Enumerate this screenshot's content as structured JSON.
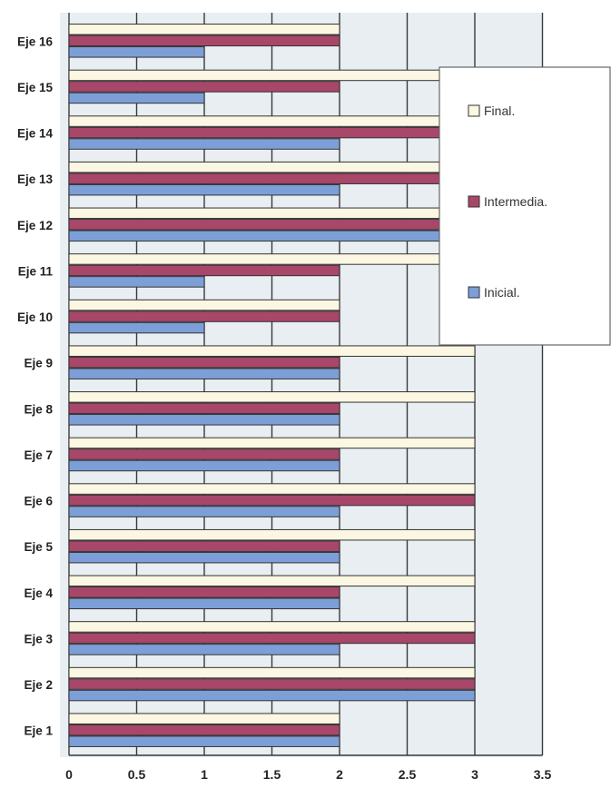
{
  "chart_data": {
    "type": "bar",
    "orientation": "horizontal",
    "categories": [
      "Eje 1",
      "Eje 2",
      "Eje 3",
      "Eje 4",
      "Eje 5",
      "Eje 6",
      "Eje 7",
      "Eje 8",
      "Eje 9",
      "Eje 10",
      "Eje 11",
      "Eje 12",
      "Eje 13",
      "Eje 14",
      "Eje 15",
      "Eje 16"
    ],
    "series": [
      {
        "name": "Inicial.",
        "color": "#7d9fd8",
        "values": [
          2,
          3,
          2,
          2,
          2,
          2,
          2,
          2,
          2,
          1,
          1,
          3,
          2,
          2,
          1,
          1
        ]
      },
      {
        "name": "Intermedia.",
        "color": "#a8476a",
        "values": [
          2,
          3,
          3,
          2,
          2,
          3,
          2,
          2,
          2,
          2,
          2,
          3,
          3,
          3,
          2,
          2
        ]
      },
      {
        "name": "Final.",
        "color": "#fbf7e2",
        "values": [
          2,
          3,
          3,
          3,
          3,
          3,
          3,
          3,
          3,
          2,
          3,
          3,
          3,
          3,
          3,
          2
        ]
      }
    ],
    "xlim": [
      0,
      3.5
    ],
    "xticks": [
      "0",
      "0.5",
      "1",
      "1.5",
      "2",
      "2.5",
      "3",
      "3.5"
    ],
    "grid": true,
    "legend_position": "right"
  }
}
